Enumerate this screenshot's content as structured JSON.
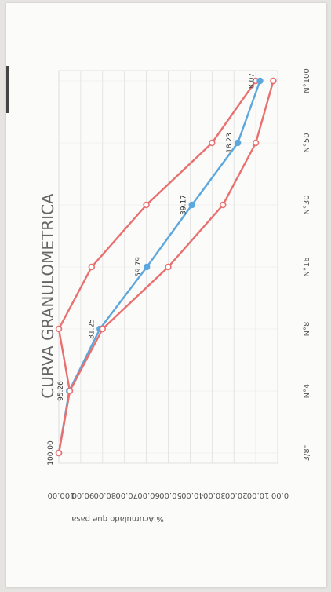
{
  "chart_data": {
    "type": "line",
    "title": "CURVA GRANULOMETRICA",
    "xlabel": "",
    "ylabel": "% Acumulado que pasa",
    "categories": [
      "3/8\"",
      "N°4",
      "N°8",
      "N°16",
      "N°30",
      "N°50",
      "N°100"
    ],
    "ylim": [
      0,
      100
    ],
    "yticks": [
      "0.00",
      "10.00",
      "20.00",
      "30.00",
      "40.00",
      "50.00",
      "60.00",
      "70.00",
      "80.00",
      "90.00",
      "100.00"
    ],
    "grid": true,
    "orientation": "rotated 90° clockwise",
    "series": [
      {
        "color": "#e8706f",
        "values": [
          100,
          95,
          100,
          85,
          60,
          30,
          10
        ]
      },
      {
        "color": "#5ca7dd",
        "values": [
          100.0,
          95.26,
          81.25,
          59.79,
          39.17,
          18.23,
          8.07
        ],
        "labels": [
          "100.00",
          "95.26",
          "81.25",
          "59.79",
          "39.17",
          "18.23",
          "8.07"
        ]
      },
      {
        "color": "#e8706f",
        "values": [
          100,
          95,
          80,
          50,
          25,
          10,
          2
        ]
      }
    ]
  }
}
